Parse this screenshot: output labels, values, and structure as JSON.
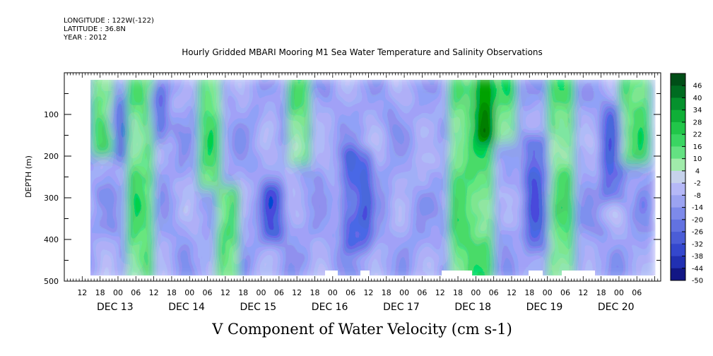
{
  "header": {
    "longitude": "LONGITUDE : 122W(-122)",
    "latitude": "LATITUDE : 36.8N",
    "year": "YEAR : 2012",
    "title": "Hourly Gridded MBARI Mooring M1 Sea Water Temperature and Salinity Observations"
  },
  "chart_data": {
    "type": "heatmap",
    "title": "Hourly Gridded MBARI Mooring M1 Sea Water Temperature and Salinity Observations",
    "variable_label": "V Component of Water Velocity (cm s-1)",
    "ylabel": "DEPTH (m)",
    "y_axis": {
      "ylim": [
        500,
        0
      ],
      "reversed": true,
      "ticks": [
        100,
        200,
        300,
        400,
        500
      ]
    },
    "x_axis": {
      "range_hours": [
        "2012-12-12 06:00",
        "2012-12-20 10:00"
      ],
      "hour_tick_labels": [
        "12",
        "18",
        "00",
        "06",
        "12",
        "18",
        "00",
        "06",
        "12",
        "18",
        "00",
        "06",
        "12",
        "18",
        "00",
        "06",
        "12",
        "18",
        "00",
        "06",
        "12",
        "18",
        "00",
        "06",
        "12",
        "18",
        "00",
        "06",
        "12",
        "18",
        "00",
        "06"
      ],
      "day_labels": [
        "DEC 13",
        "DEC 14",
        "DEC 15",
        "DEC 16",
        "DEC 17",
        "DEC 18",
        "DEC 19",
        "DEC 20"
      ]
    },
    "data_extent": {
      "time": [
        "2012-12-12 15:00",
        "2012-12-20 09:00"
      ],
      "depth_m": [
        20,
        485
      ]
    },
    "colorbar": {
      "levels": [
        48,
        46,
        40,
        34,
        28,
        22,
        16,
        10,
        4,
        -2,
        -8,
        -14,
        -20,
        -26,
        -32,
        -38,
        -44,
        -50
      ],
      "tick_labels": [
        "46",
        "40",
        "34",
        "28",
        "22",
        "16",
        "10",
        "4",
        "-2",
        "-8",
        "-14",
        "-20",
        "-26",
        "-32",
        "-38",
        "-44",
        "-50"
      ]
    },
    "field_summary": {
      "positive_bands": [
        {
          "time": [
            "12-12 15:00",
            "12-12 21:00"
          ],
          "depth_m": [
            20,
            180
          ]
        },
        {
          "time": [
            "12-13 04:00",
            "12-13 10:00"
          ],
          "depth_m": [
            20,
            485
          ]
        },
        {
          "time": [
            "12-14 03:00",
            "12-14 09:00"
          ],
          "depth_m": [
            20,
            260
          ]
        },
        {
          "time": [
            "12-14 09:00",
            "12-14 14:00"
          ],
          "depth_m": [
            280,
            485
          ]
        },
        {
          "time": [
            "12-15 09:00",
            "12-15 15:00"
          ],
          "depth_m": [
            20,
            200
          ]
        },
        {
          "time": [
            "12-17 16:00",
            "12-18 04:00"
          ],
          "depth_m": [
            20,
            485
          ]
        },
        {
          "time": [
            "12-18 00:00",
            "12-18 12:00"
          ],
          "depth_m": [
            20,
            150
          ]
        },
        {
          "time": [
            "12-19 00:00",
            "12-19 07:00"
          ],
          "depth_m": [
            20,
            485
          ]
        },
        {
          "time": [
            "12-20 00:00",
            "12-20 09:00"
          ],
          "depth_m": [
            20,
            200
          ]
        }
      ],
      "negative_cores": [
        {
          "time": [
            "12-12 20:00",
            "12-13 02:00"
          ],
          "depth_m": [
            60,
            200
          ]
        },
        {
          "time": [
            "12-13 10:00",
            "12-13 16:00"
          ],
          "depth_m": [
            40,
            160
          ]
        },
        {
          "time": [
            "12-15 00:00",
            "12-15 06:00"
          ],
          "depth_m": [
            260,
            400
          ]
        },
        {
          "time": [
            "12-16 02:00",
            "12-16 12:00"
          ],
          "depth_m": [
            180,
            420
          ]
        },
        {
          "time": [
            "12-18 16:00",
            "12-19 00:00"
          ],
          "depth_m": [
            150,
            420
          ]
        },
        {
          "time": [
            "12-19 18:00",
            "12-20 00:00"
          ],
          "depth_m": [
            80,
            300
          ]
        }
      ]
    }
  }
}
